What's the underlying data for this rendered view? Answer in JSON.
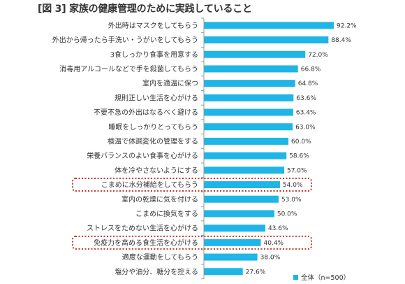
{
  "chart_data": {
    "type": "bar",
    "title": "[図 3] 家族の健康管理のために実践していること",
    "categories": [
      "外出時はマスクをしてもらう",
      "外出から帰ったら手洗い・うがいをしてもらう",
      "3食しっかり食事を用意する",
      "消毒用アルコールなどで手を殺菌してもらう",
      "室内を適温に保つ",
      "規則正しい生活を心がける",
      "不要不急の外出はなるべく避ける",
      "睡眠をしっかりとってもらう",
      "検温で体調変化の管理をする",
      "栄養バランスのよい食事を心がける",
      "体を冷やさないようにする",
      "こまめに水分補給をしてもらう",
      "室内の乾燥に気を付ける",
      "こまめに換気をする",
      "ストレスをためない生活を心がける",
      "免疫力を高める食生活を心がける",
      "適度な運動をしてもらう",
      "塩分や油分、糖分を控える"
    ],
    "series": [
      {
        "name": "全体（n=500）",
        "values": [
          92.2,
          88.4,
          72.0,
          66.8,
          64.8,
          63.6,
          63.4,
          63.0,
          60.0,
          58.6,
          57.0,
          54.0,
          53.0,
          50.0,
          43.6,
          40.4,
          38.0,
          27.6
        ],
        "labels": [
          "92.2%",
          "88.4%",
          "72.0%",
          "66.8%",
          "64.8%",
          "63.6%",
          "63.4%",
          "63.0%",
          "60.0%",
          "58.6%",
          "57.0%",
          "54.0%",
          "53.0%",
          "50.0%",
          "43.6%",
          "40.4%",
          "38.0%",
          "27.6%"
        ]
      }
    ],
    "xlim": [
      0,
      100
    ],
    "highlighted_categories": [
      "こまめに水分補給をしてもらう",
      "免疫力を高める食生活を心がける"
    ],
    "legend_position": "bottom-right",
    "grid": false,
    "colors": {
      "bar": "#1fb5e6",
      "highlight_border": "#c0392b",
      "axis": "#999999"
    }
  }
}
